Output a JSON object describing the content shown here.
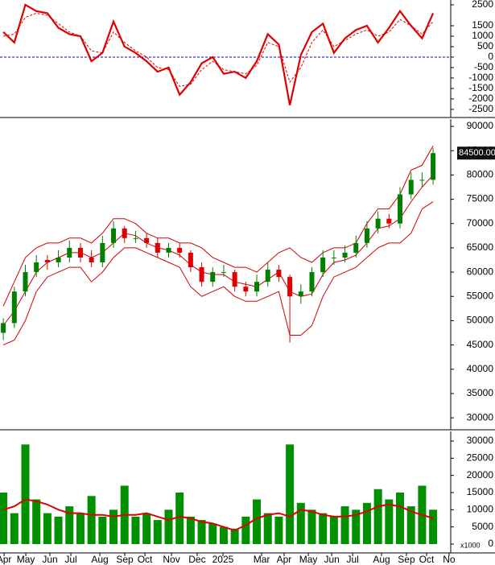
{
  "chart_data": [
    {
      "type": "line",
      "xlim": [
        -0.3,
        40.6
      ],
      "ylim": [
        -2850,
        2730
      ],
      "yticks": [
        2500,
        1500,
        1000,
        500,
        0,
        -500,
        -1000,
        -1500,
        -2000,
        -2500
      ],
      "zero_line": {
        "value": 0,
        "color": "#0000cc"
      },
      "series": [
        {
          "color": "#e00000",
          "style": "solid",
          "values": [
            1200,
            700,
            2500,
            2200,
            2100,
            1400,
            1100,
            1000,
            -200,
            200,
            1700,
            500,
            200,
            -200,
            -700,
            -500,
            -1800,
            -1200,
            -300,
            0,
            -800,
            -700,
            -1000,
            -200,
            1100,
            600,
            -2300,
            100,
            1200,
            1600,
            200,
            900,
            1300,
            1500,
            700,
            1400,
            2200,
            1500,
            900,
            2100
          ]
        },
        {
          "color": "#e00000",
          "style": "dashed",
          "values": [
            1000,
            1100,
            1900,
            2100,
            2000,
            1600,
            1200,
            1000,
            300,
            200,
            1200,
            700,
            300,
            0,
            -500,
            -600,
            -1400,
            -1300,
            -600,
            -200,
            -600,
            -700,
            -800,
            -400,
            700,
            500,
            -1200,
            -500,
            700,
            1300,
            500,
            800,
            1100,
            1300,
            1000,
            1200,
            1800,
            1500,
            1100,
            1700
          ]
        }
      ]
    },
    {
      "type": "candlestick",
      "xlim": [
        -0.3,
        40.6
      ],
      "ylim": [
        27700,
        91500
      ],
      "yticks": [
        90000,
        85000,
        80000,
        75000,
        70000,
        65000,
        60000,
        55000,
        50000,
        45000,
        40000,
        35000,
        30000
      ],
      "up_color": "#008000",
      "down_color": "#e00000",
      "open": [
        47500,
        49500,
        56000,
        60000,
        62500,
        62000,
        63000,
        65000,
        63000,
        62000,
        66000,
        69000,
        67000,
        67000,
        66000,
        64000,
        65000,
        64000,
        61000,
        58000,
        60000,
        60000,
        57000,
        56000,
        58000,
        60500,
        59000,
        55000,
        56000,
        60000,
        63000,
        63000,
        64000,
        66000,
        69000,
        71000,
        70000,
        76000,
        79000,
        79000
      ],
      "high": [
        50500,
        57000,
        61500,
        63500,
        63500,
        64500,
        66500,
        66000,
        64500,
        67500,
        70500,
        69500,
        68500,
        68000,
        67000,
        66000,
        66000,
        64500,
        62000,
        61000,
        61500,
        60500,
        58000,
        59500,
        62000,
        61500,
        59500,
        57500,
        61000,
        64500,
        64500,
        65500,
        67500,
        70500,
        72500,
        72000,
        77500,
        80500,
        80500,
        85500
      ],
      "low": [
        46000,
        48500,
        55000,
        59000,
        60500,
        61000,
        62000,
        62000,
        61000,
        61000,
        65000,
        66000,
        66000,
        65000,
        63000,
        63000,
        63000,
        60000,
        57000,
        57000,
        59000,
        56000,
        55000,
        55000,
        57000,
        58000,
        45500,
        53500,
        55000,
        59000,
        61500,
        62000,
        63000,
        65000,
        68000,
        69000,
        69000,
        75000,
        77500,
        78000
      ],
      "close": [
        49500,
        56000,
        60000,
        62000,
        62000,
        63000,
        65000,
        63000,
        62000,
        66000,
        69000,
        67000,
        67000,
        66000,
        64000,
        65000,
        64000,
        61000,
        58000,
        60000,
        60000,
        57000,
        56000,
        58000,
        60500,
        59000,
        55000,
        56000,
        60000,
        63000,
        63000,
        64000,
        66000,
        69000,
        71000,
        70000,
        76000,
        79000,
        79000,
        84500
      ],
      "bands": [
        {
          "color": "#d00000",
          "values": [
            53000,
            58000,
            63000,
            65000,
            66000,
            66000,
            67000,
            67000,
            66000,
            68000,
            71000,
            71000,
            70000,
            68000,
            67000,
            67000,
            66000,
            66000,
            65000,
            63000,
            62000,
            61000,
            61000,
            60000,
            62000,
            64000,
            65000,
            63000,
            62000,
            64000,
            65000,
            65000,
            66000,
            70000,
            73000,
            73000,
            76000,
            81000,
            82000,
            86000
          ]
        },
        {
          "color": "#d00000",
          "values": [
            49000,
            52000,
            56000,
            60000,
            62000,
            63000,
            64000,
            64000,
            63000,
            64000,
            66000,
            68000,
            67500,
            66000,
            65000,
            64500,
            63500,
            61500,
            60000,
            59500,
            59500,
            58000,
            57500,
            57000,
            58500,
            60000,
            56000,
            55000,
            55500,
            59500,
            62000,
            62500,
            63500,
            66000,
            69000,
            69500,
            71000,
            74500,
            77500,
            80000
          ]
        },
        {
          "color": "#d00000",
          "values": [
            45000,
            46000,
            50000,
            56000,
            59000,
            60000,
            61000,
            61000,
            58000,
            60000,
            63000,
            65000,
            65000,
            64000,
            63000,
            62000,
            61000,
            57000,
            55000,
            56000,
            57000,
            55000,
            54000,
            54000,
            55000,
            56000,
            47000,
            47000,
            49000,
            55000,
            59000,
            60000,
            61000,
            63000,
            65000,
            66000,
            66000,
            68000,
            73000,
            74500
          ]
        }
      ],
      "last_value": 84500,
      "last_value_label": "84500.00"
    },
    {
      "type": "bar",
      "xlim": [
        -0.3,
        40.6
      ],
      "ylim": [
        -2340,
        32810
      ],
      "yticks": [
        30000,
        25000,
        20000,
        15000,
        10000,
        5000,
        0
      ],
      "unit_label": "x1000",
      "color": "#009000",
      "values": [
        15000,
        9000,
        29000,
        13000,
        9000,
        8000,
        11000,
        9000,
        14000,
        8000,
        10000,
        17000,
        8000,
        9000,
        7000,
        10000,
        15000,
        8000,
        7000,
        6000,
        5000,
        4500,
        8000,
        13000,
        9000,
        8000,
        29000,
        12000,
        10000,
        9000,
        8000,
        11000,
        10000,
        12000,
        16000,
        13000,
        15000,
        11000,
        17000,
        10000
      ],
      "average": {
        "color": "#e00000",
        "values": [
          10000,
          11000,
          13000,
          12500,
          11500,
          10000,
          9000,
          9000,
          8500,
          8500,
          8000,
          8500,
          8500,
          9000,
          8000,
          7000,
          8000,
          7500,
          6500,
          6000,
          5000,
          4000,
          5500,
          7500,
          8500,
          9000,
          8000,
          10000,
          9500,
          8500,
          8000,
          8000,
          8500,
          9500,
          11000,
          11500,
          11000,
          9500,
          8500,
          7500
        ]
      },
      "xticks": [
        {
          "value": 0.07,
          "label": "Apr"
        },
        {
          "value": 2.04,
          "label": "May"
        },
        {
          "value": 4.23,
          "label": "Jun"
        },
        {
          "value": 6.13,
          "label": "Jul"
        },
        {
          "value": 8.76,
          "label": "Aug"
        },
        {
          "value": 11.02,
          "label": "Sep"
        },
        {
          "value": 12.85,
          "label": "Oct"
        },
        {
          "value": 15.26,
          "label": "Nov"
        },
        {
          "value": 17.59,
          "label": "Dec"
        },
        {
          "value": 19.93,
          "label": "2025"
        },
        {
          "value": 23.44,
          "label": "Mar"
        },
        {
          "value": 25.48,
          "label": "Apr"
        },
        {
          "value": 27.68,
          "label": "May"
        },
        {
          "value": 29.8,
          "label": "Jun"
        },
        {
          "value": 31.7,
          "label": "Jul"
        },
        {
          "value": 34.32,
          "label": "Aug"
        },
        {
          "value": 36.58,
          "label": "Sep"
        },
        {
          "value": 38.41,
          "label": "Oct"
        },
        {
          "value": 40.45,
          "label": "No"
        }
      ]
    }
  ]
}
